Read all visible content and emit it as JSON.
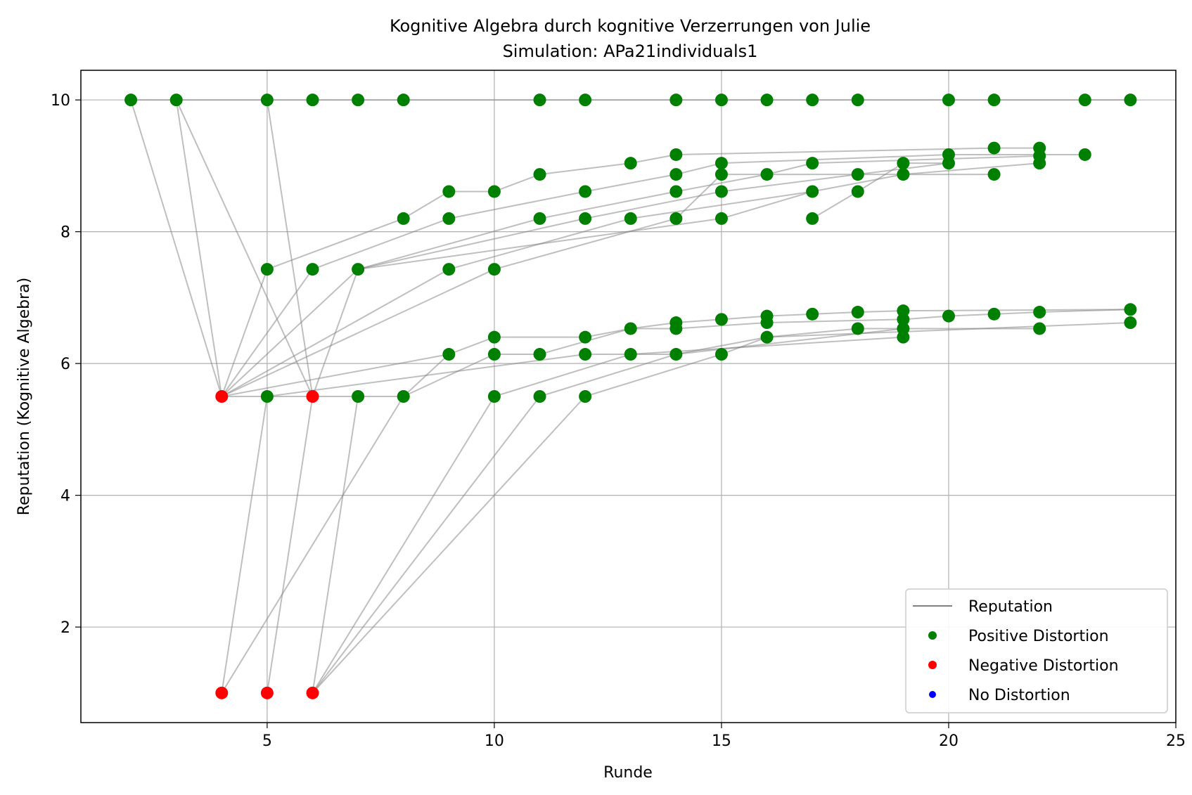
{
  "chart_data": {
    "type": "scatter",
    "title": "Kognitive Algebra durch kognitive Verzerrungen von Julie",
    "subtitle": "Simulation: APa21individuals1",
    "xlabel": "Runde",
    "ylabel": "Reputation (Kognitive Algebra)",
    "xlim": [
      0.9,
      25.0
    ],
    "ylim": [
      0.55,
      10.45
    ],
    "x_ticks": [
      5,
      10,
      15,
      20,
      25
    ],
    "y_ticks": [
      2,
      4,
      6,
      8,
      10
    ],
    "grid": true,
    "legend_position": "lower right",
    "legend": [
      {
        "label": "Reputation",
        "kind": "line",
        "color": "#808080"
      },
      {
        "label": "Positive Distortion",
        "kind": "marker",
        "color": "#008000"
      },
      {
        "label": "Negative Distortion",
        "kind": "marker",
        "color": "#ff0000"
      },
      {
        "label": "No Distortion",
        "kind": "marker",
        "color": "#0000ff"
      }
    ],
    "colors": {
      "positive": "#008000",
      "negative": "#ff0000",
      "none": "#0000ff",
      "line": "#808080"
    },
    "points": [
      {
        "x": 2,
        "y": 10,
        "d": "positive"
      },
      {
        "x": 3,
        "y": 10,
        "d": "positive"
      },
      {
        "x": 5,
        "y": 10,
        "d": "positive"
      },
      {
        "x": 6,
        "y": 10,
        "d": "positive"
      },
      {
        "x": 7,
        "y": 10,
        "d": "positive"
      },
      {
        "x": 8,
        "y": 10,
        "d": "positive"
      },
      {
        "x": 11,
        "y": 10,
        "d": "positive"
      },
      {
        "x": 12,
        "y": 10,
        "d": "positive"
      },
      {
        "x": 14,
        "y": 10,
        "d": "positive"
      },
      {
        "x": 15,
        "y": 10,
        "d": "positive"
      },
      {
        "x": 16,
        "y": 10,
        "d": "positive"
      },
      {
        "x": 17,
        "y": 10,
        "d": "positive"
      },
      {
        "x": 18,
        "y": 10,
        "d": "positive"
      },
      {
        "x": 20,
        "y": 10,
        "d": "positive"
      },
      {
        "x": 21,
        "y": 10,
        "d": "positive"
      },
      {
        "x": 23,
        "y": 10,
        "d": "positive"
      },
      {
        "x": 24,
        "y": 10,
        "d": "positive"
      },
      {
        "x": 14,
        "y": 9.17,
        "d": "positive"
      },
      {
        "x": 21,
        "y": 9.27,
        "d": "positive"
      },
      {
        "x": 22,
        "y": 9.27,
        "d": "positive"
      },
      {
        "x": 23,
        "y": 9.17,
        "d": "positive"
      },
      {
        "x": 20,
        "y": 9.17,
        "d": "positive"
      },
      {
        "x": 22,
        "y": 9.15,
        "d": "positive"
      },
      {
        "x": 13,
        "y": 9.04,
        "d": "positive"
      },
      {
        "x": 15,
        "y": 9.04,
        "d": "positive"
      },
      {
        "x": 17,
        "y": 9.04,
        "d": "positive"
      },
      {
        "x": 19,
        "y": 9.04,
        "d": "positive"
      },
      {
        "x": 20,
        "y": 9.04,
        "d": "positive"
      },
      {
        "x": 22,
        "y": 9.04,
        "d": "positive"
      },
      {
        "x": 11,
        "y": 8.87,
        "d": "positive"
      },
      {
        "x": 14,
        "y": 8.87,
        "d": "positive"
      },
      {
        "x": 15,
        "y": 8.87,
        "d": "positive"
      },
      {
        "x": 16,
        "y": 8.87,
        "d": "positive"
      },
      {
        "x": 18,
        "y": 8.87,
        "d": "positive"
      },
      {
        "x": 19,
        "y": 8.87,
        "d": "positive"
      },
      {
        "x": 21,
        "y": 8.87,
        "d": "positive"
      },
      {
        "x": 9,
        "y": 8.61,
        "d": "positive"
      },
      {
        "x": 10,
        "y": 8.61,
        "d": "positive"
      },
      {
        "x": 12,
        "y": 8.61,
        "d": "positive"
      },
      {
        "x": 14,
        "y": 8.61,
        "d": "positive"
      },
      {
        "x": 15,
        "y": 8.61,
        "d": "positive"
      },
      {
        "x": 17,
        "y": 8.61,
        "d": "positive"
      },
      {
        "x": 18,
        "y": 8.61,
        "d": "positive"
      },
      {
        "x": 8,
        "y": 8.2,
        "d": "positive"
      },
      {
        "x": 9,
        "y": 8.2,
        "d": "positive"
      },
      {
        "x": 11,
        "y": 8.2,
        "d": "positive"
      },
      {
        "x": 12,
        "y": 8.2,
        "d": "positive"
      },
      {
        "x": 13,
        "y": 8.2,
        "d": "positive"
      },
      {
        "x": 14,
        "y": 8.2,
        "d": "positive"
      },
      {
        "x": 15,
        "y": 8.2,
        "d": "positive"
      },
      {
        "x": 17,
        "y": 8.2,
        "d": "positive"
      },
      {
        "x": 5,
        "y": 7.43,
        "d": "positive"
      },
      {
        "x": 6,
        "y": 7.43,
        "d": "positive"
      },
      {
        "x": 7,
        "y": 7.43,
        "d": "positive"
      },
      {
        "x": 9,
        "y": 7.43,
        "d": "positive"
      },
      {
        "x": 10,
        "y": 7.43,
        "d": "positive"
      },
      {
        "x": 19,
        "y": 6.8,
        "d": "positive"
      },
      {
        "x": 24,
        "y": 6.82,
        "d": "positive"
      },
      {
        "x": 18,
        "y": 6.78,
        "d": "positive"
      },
      {
        "x": 22,
        "y": 6.78,
        "d": "positive"
      },
      {
        "x": 17,
        "y": 6.75,
        "d": "positive"
      },
      {
        "x": 21,
        "y": 6.75,
        "d": "positive"
      },
      {
        "x": 16,
        "y": 6.72,
        "d": "positive"
      },
      {
        "x": 20,
        "y": 6.72,
        "d": "positive"
      },
      {
        "x": 15,
        "y": 6.67,
        "d": "positive"
      },
      {
        "x": 19,
        "y": 6.67,
        "d": "positive"
      },
      {
        "x": 14,
        "y": 6.62,
        "d": "positive"
      },
      {
        "x": 16,
        "y": 6.62,
        "d": "positive"
      },
      {
        "x": 24,
        "y": 6.62,
        "d": "positive"
      },
      {
        "x": 13,
        "y": 6.53,
        "d": "positive"
      },
      {
        "x": 14,
        "y": 6.53,
        "d": "positive"
      },
      {
        "x": 18,
        "y": 6.53,
        "d": "positive"
      },
      {
        "x": 19,
        "y": 6.53,
        "d": "positive"
      },
      {
        "x": 22,
        "y": 6.53,
        "d": "positive"
      },
      {
        "x": 10,
        "y": 6.4,
        "d": "positive"
      },
      {
        "x": 12,
        "y": 6.4,
        "d": "positive"
      },
      {
        "x": 16,
        "y": 6.4,
        "d": "positive"
      },
      {
        "x": 19,
        "y": 6.4,
        "d": "positive"
      },
      {
        "x": 9,
        "y": 6.14,
        "d": "positive"
      },
      {
        "x": 10,
        "y": 6.14,
        "d": "positive"
      },
      {
        "x": 11,
        "y": 6.14,
        "d": "positive"
      },
      {
        "x": 12,
        "y": 6.14,
        "d": "positive"
      },
      {
        "x": 13,
        "y": 6.14,
        "d": "positive"
      },
      {
        "x": 14,
        "y": 6.14,
        "d": "positive"
      },
      {
        "x": 15,
        "y": 6.14,
        "d": "positive"
      },
      {
        "x": 5,
        "y": 5.5,
        "d": "positive"
      },
      {
        "x": 7,
        "y": 5.5,
        "d": "positive"
      },
      {
        "x": 8,
        "y": 5.5,
        "d": "positive"
      },
      {
        "x": 10,
        "y": 5.5,
        "d": "positive"
      },
      {
        "x": 11,
        "y": 5.5,
        "d": "positive"
      },
      {
        "x": 12,
        "y": 5.5,
        "d": "positive"
      },
      {
        "x": 4,
        "y": 5.5,
        "d": "negative"
      },
      {
        "x": 6,
        "y": 5.5,
        "d": "negative"
      },
      {
        "x": 4,
        "y": 1,
        "d": "negative"
      },
      {
        "x": 5,
        "y": 1,
        "d": "negative"
      },
      {
        "x": 6,
        "y": 1,
        "d": "negative"
      }
    ],
    "lines": [
      {
        "x": [
          2,
          24
        ],
        "y": [
          10,
          10
        ]
      },
      {
        "x": [
          2,
          4
        ],
        "y": [
          10,
          5.5
        ]
      },
      {
        "x": [
          3,
          4
        ],
        "y": [
          10,
          5.5
        ]
      },
      {
        "x": [
          3,
          6
        ],
        "y": [
          10,
          5.5
        ]
      },
      {
        "x": [
          5,
          6
        ],
        "y": [
          10,
          5.5
        ]
      },
      {
        "x": [
          4,
          5
        ],
        "y": [
          5.5,
          7.43
        ]
      },
      {
        "x": [
          4,
          6
        ],
        "y": [
          5.5,
          7.43
        ]
      },
      {
        "x": [
          4,
          7
        ],
        "y": [
          5.5,
          7.43
        ]
      },
      {
        "x": [
          4,
          9
        ],
        "y": [
          5.5,
          7.43
        ]
      },
      {
        "x": [
          4,
          10
        ],
        "y": [
          5.5,
          7.43
        ]
      },
      {
        "x": [
          6,
          7
        ],
        "y": [
          5.5,
          7.43
        ]
      },
      {
        "x": [
          4,
          8
        ],
        "y": [
          5.5,
          5.5
        ]
      },
      {
        "x": [
          4,
          9
        ],
        "y": [
          5.5,
          6.14
        ]
      },
      {
        "x": [
          5,
          8
        ],
        "y": [
          7.43,
          8.2
        ]
      },
      {
        "x": [
          8,
          9
        ],
        "y": [
          8.2,
          8.61
        ]
      },
      {
        "x": [
          9,
          10
        ],
        "y": [
          8.61,
          8.61
        ]
      },
      {
        "x": [
          10,
          11
        ],
        "y": [
          8.61,
          8.87
        ]
      },
      {
        "x": [
          11,
          13
        ],
        "y": [
          8.87,
          9.04
        ]
      },
      {
        "x": [
          13,
          14
        ],
        "y": [
          9.04,
          9.17
        ]
      },
      {
        "x": [
          14,
          21
        ],
        "y": [
          9.17,
          9.27
        ]
      },
      {
        "x": [
          21,
          22
        ],
        "y": [
          9.27,
          9.27
        ]
      },
      {
        "x": [
          6,
          9
        ],
        "y": [
          7.43,
          8.2
        ]
      },
      {
        "x": [
          9,
          12
        ],
        "y": [
          8.2,
          8.61
        ]
      },
      {
        "x": [
          12,
          14
        ],
        "y": [
          8.61,
          8.87
        ]
      },
      {
        "x": [
          14,
          15
        ],
        "y": [
          8.87,
          9.04
        ]
      },
      {
        "x": [
          15,
          20
        ],
        "y": [
          9.04,
          9.17
        ]
      },
      {
        "x": [
          20,
          23
        ],
        "y": [
          9.17,
          9.17
        ]
      },
      {
        "x": [
          7,
          11
        ],
        "y": [
          7.43,
          8.2
        ]
      },
      {
        "x": [
          11,
          14
        ],
        "y": [
          8.2,
          8.61
        ]
      },
      {
        "x": [
          14,
          16
        ],
        "y": [
          8.61,
          8.87
        ]
      },
      {
        "x": [
          16,
          17
        ],
        "y": [
          8.87,
          9.04
        ]
      },
      {
        "x": [
          17,
          22
        ],
        "y": [
          9.04,
          9.15
        ]
      },
      {
        "x": [
          7,
          12
        ],
        "y": [
          7.43,
          8.2
        ]
      },
      {
        "x": [
          12,
          15
        ],
        "y": [
          8.2,
          8.61
        ]
      },
      {
        "x": [
          15,
          18
        ],
        "y": [
          8.61,
          8.87
        ]
      },
      {
        "x": [
          18,
          20
        ],
        "y": [
          8.87,
          9.04
        ]
      },
      {
        "x": [
          7,
          15
        ],
        "y": [
          7.43,
          8.2
        ]
      },
      {
        "x": [
          15,
          17
        ],
        "y": [
          8.2,
          8.61
        ]
      },
      {
        "x": [
          17,
          19
        ],
        "y": [
          8.61,
          8.87
        ]
      },
      {
        "x": [
          19,
          22
        ],
        "y": [
          8.87,
          9.04
        ]
      },
      {
        "x": [
          10,
          14
        ],
        "y": [
          7.43,
          8.2
        ]
      },
      {
        "x": [
          14,
          15
        ],
        "y": [
          8.2,
          8.87
        ]
      },
      {
        "x": [
          15,
          21
        ],
        "y": [
          8.87,
          8.87
        ]
      },
      {
        "x": [
          9,
          13
        ],
        "y": [
          7.43,
          8.2
        ]
      },
      {
        "x": [
          13,
          17
        ],
        "y": [
          8.2,
          8.61
        ]
      },
      {
        "x": [
          17,
          18
        ],
        "y": [
          8.2,
          8.61
        ]
      },
      {
        "x": [
          18,
          19
        ],
        "y": [
          8.61,
          9.04
        ]
      },
      {
        "x": [
          19,
          20
        ],
        "y": [
          9.04,
          9.04
        ]
      },
      {
        "x": [
          4,
          5
        ],
        "y": [
          1,
          5.5
        ]
      },
      {
        "x": [
          4,
          8
        ],
        "y": [
          1,
          5.5
        ]
      },
      {
        "x": [
          5,
          6
        ],
        "y": [
          1,
          5.5
        ]
      },
      {
        "x": [
          6,
          7
        ],
        "y": [
          1,
          5.5
        ]
      },
      {
        "x": [
          6,
          10
        ],
        "y": [
          1,
          5.5
        ]
      },
      {
        "x": [
          6,
          11
        ],
        "y": [
          1,
          5.5
        ]
      },
      {
        "x": [
          6,
          12
        ],
        "y": [
          1,
          5.5
        ]
      },
      {
        "x": [
          8,
          9
        ],
        "y": [
          5.5,
          6.14
        ]
      },
      {
        "x": [
          9,
          10
        ],
        "y": [
          6.14,
          6.4
        ]
      },
      {
        "x": [
          10,
          12
        ],
        "y": [
          6.4,
          6.4
        ]
      },
      {
        "x": [
          12,
          13
        ],
        "y": [
          6.4,
          6.53
        ]
      },
      {
        "x": [
          13,
          14
        ],
        "y": [
          6.53,
          6.62
        ]
      },
      {
        "x": [
          14,
          15
        ],
        "y": [
          6.62,
          6.67
        ]
      },
      {
        "x": [
          15,
          16
        ],
        "y": [
          6.67,
          6.72
        ]
      },
      {
        "x": [
          16,
          17
        ],
        "y": [
          6.72,
          6.75
        ]
      },
      {
        "x": [
          17,
          18
        ],
        "y": [
          6.75,
          6.78
        ]
      },
      {
        "x": [
          18,
          19
        ],
        "y": [
          6.78,
          6.8
        ]
      },
      {
        "x": [
          19,
          24
        ],
        "y": [
          6.8,
          6.82
        ]
      },
      {
        "x": [
          8,
          10
        ],
        "y": [
          5.5,
          6.14
        ]
      },
      {
        "x": [
          10,
          11
        ],
        "y": [
          6.14,
          6.14
        ]
      },
      {
        "x": [
          11,
          13
        ],
        "y": [
          6.14,
          6.53
        ]
      },
      {
        "x": [
          13,
          14
        ],
        "y": [
          6.53,
          6.53
        ]
      },
      {
        "x": [
          14,
          16
        ],
        "y": [
          6.53,
          6.62
        ]
      },
      {
        "x": [
          16,
          19
        ],
        "y": [
          6.62,
          6.67
        ]
      },
      {
        "x": [
          19,
          20
        ],
        "y": [
          6.67,
          6.72
        ]
      },
      {
        "x": [
          20,
          21
        ],
        "y": [
          6.72,
          6.75
        ]
      },
      {
        "x": [
          21,
          22
        ],
        "y": [
          6.75,
          6.78
        ]
      },
      {
        "x": [
          22,
          24
        ],
        "y": [
          6.78,
          6.82
        ]
      },
      {
        "x": [
          5,
          12
        ],
        "y": [
          5.5,
          6.14
        ]
      },
      {
        "x": [
          12,
          14
        ],
        "y": [
          6.14,
          6.14
        ]
      },
      {
        "x": [
          14,
          16
        ],
        "y": [
          6.14,
          6.4
        ]
      },
      {
        "x": [
          16,
          18
        ],
        "y": [
          6.4,
          6.53
        ]
      },
      {
        "x": [
          18,
          22
        ],
        "y": [
          6.53,
          6.53
        ]
      },
      {
        "x": [
          10,
          13
        ],
        "y": [
          5.5,
          6.14
        ]
      },
      {
        "x": [
          13,
          19
        ],
        "y": [
          6.14,
          6.4
        ]
      },
      {
        "x": [
          11,
          14
        ],
        "y": [
          5.5,
          6.14
        ]
      },
      {
        "x": [
          14,
          19
        ],
        "y": [
          6.14,
          6.53
        ]
      },
      {
        "x": [
          12,
          15
        ],
        "y": [
          5.5,
          6.14
        ]
      },
      {
        "x": [
          15,
          16
        ],
        "y": [
          6.14,
          6.4
        ]
      },
      {
        "x": [
          16,
          24
        ],
        "y": [
          6.4,
          6.62
        ]
      }
    ]
  }
}
